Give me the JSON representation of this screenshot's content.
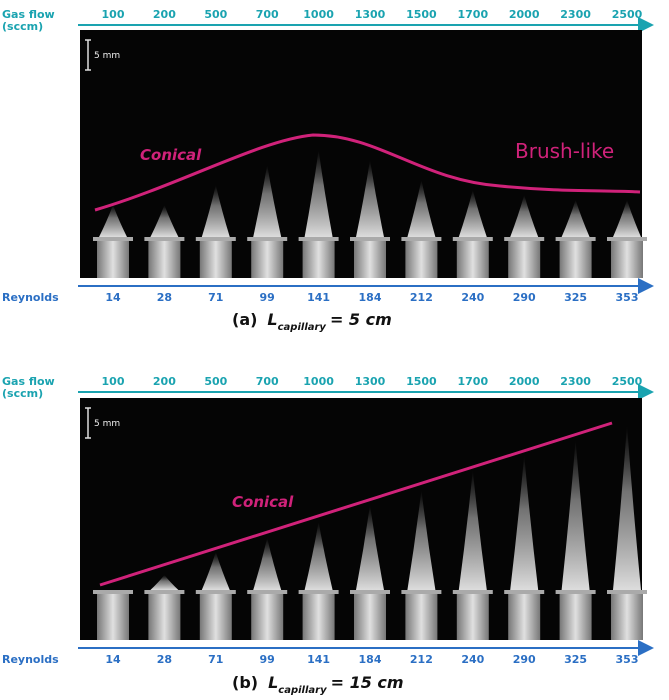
{
  "panels": [
    {
      "gas_flow_label": "Gas flow",
      "gas_flow_unit": "(sccm)",
      "gas_flow": [
        "100",
        "200",
        "500",
        "700",
        "1000",
        "1300",
        "1500",
        "1700",
        "2000",
        "2300",
        "2500"
      ],
      "scale_bar": "5 mm",
      "annotations": [
        "Conical",
        "Brush-like"
      ],
      "reynolds_label": "Reynolds",
      "reynolds": [
        "14",
        "28",
        "71",
        "99",
        "141",
        "184",
        "212",
        "240",
        "290",
        "325",
        "353"
      ],
      "caption": {
        "tag": "(a)",
        "symbol": "L",
        "subscript": "capillary",
        "equation": "= 5 cm"
      }
    },
    {
      "gas_flow_label": "Gas flow",
      "gas_flow_unit": "(sccm)",
      "gas_flow": [
        "100",
        "200",
        "500",
        "700",
        "1000",
        "1300",
        "1500",
        "1700",
        "2000",
        "2300",
        "2500"
      ],
      "scale_bar": "5 mm",
      "annotations": [
        "Conical"
      ],
      "reynolds_label": "Reynolds",
      "reynolds": [
        "14",
        "28",
        "71",
        "99",
        "141",
        "184",
        "212",
        "240",
        "290",
        "325",
        "353"
      ],
      "caption": {
        "tag": "(b)",
        "symbol": "L",
        "subscript": "capillary",
        "equation": "= 15 cm"
      }
    }
  ]
}
